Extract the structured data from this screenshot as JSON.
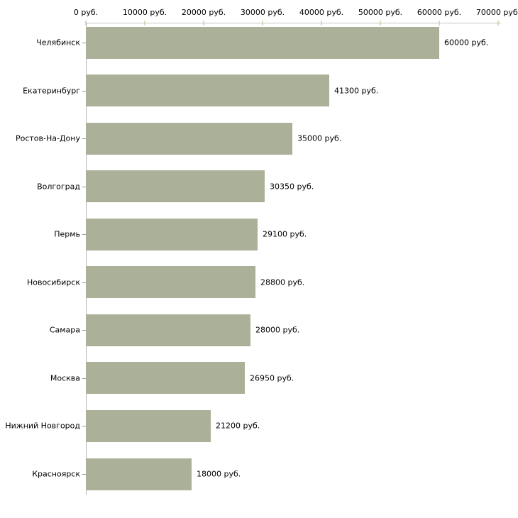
{
  "chart_data": {
    "type": "bar",
    "orientation": "horizontal",
    "title": "",
    "xlabel": "",
    "ylabel": "",
    "grid": false,
    "legend": false,
    "axis_position": "top",
    "categories": [
      "Челябинск",
      "Екатеринбург",
      "Ростов-На-Дону",
      "Волгоград",
      "Пермь",
      "Новосибирск",
      "Самара",
      "Москва",
      "Нижний Новгород",
      "Красноярск"
    ],
    "values": [
      60000,
      41300,
      35000,
      30350,
      29100,
      28800,
      28000,
      26950,
      21200,
      18000
    ],
    "value_labels": [
      "60000 руб.",
      "41300 руб.",
      "35000 руб.",
      "30350 руб.",
      "29100 руб.",
      "28800 руб.",
      "28000 руб.",
      "26950 руб.",
      "21200 руб.",
      "18000 руб."
    ],
    "xlim": [
      0,
      70000
    ],
    "x_ticks": [
      {
        "value": 0,
        "label": "0 руб."
      },
      {
        "value": 10000,
        "label": "10000 руб."
      },
      {
        "value": 20000,
        "label": "20000 руб."
      },
      {
        "value": 30000,
        "label": "30000 руб."
      },
      {
        "value": 40000,
        "label": "40000 руб."
      },
      {
        "value": 50000,
        "label": "50000 руб."
      },
      {
        "value": 60000,
        "label": "60000 руб."
      },
      {
        "value": 70000,
        "label": "70000 руб."
      }
    ],
    "colors": {
      "bar": "#abb098",
      "x_axis_line": "#c6c6c6",
      "y_axis_line": "#b3b3b3",
      "x_tick": "#d9dbbc",
      "category_tick": "#999999",
      "text": "#000000",
      "background": "#ffffff"
    }
  }
}
